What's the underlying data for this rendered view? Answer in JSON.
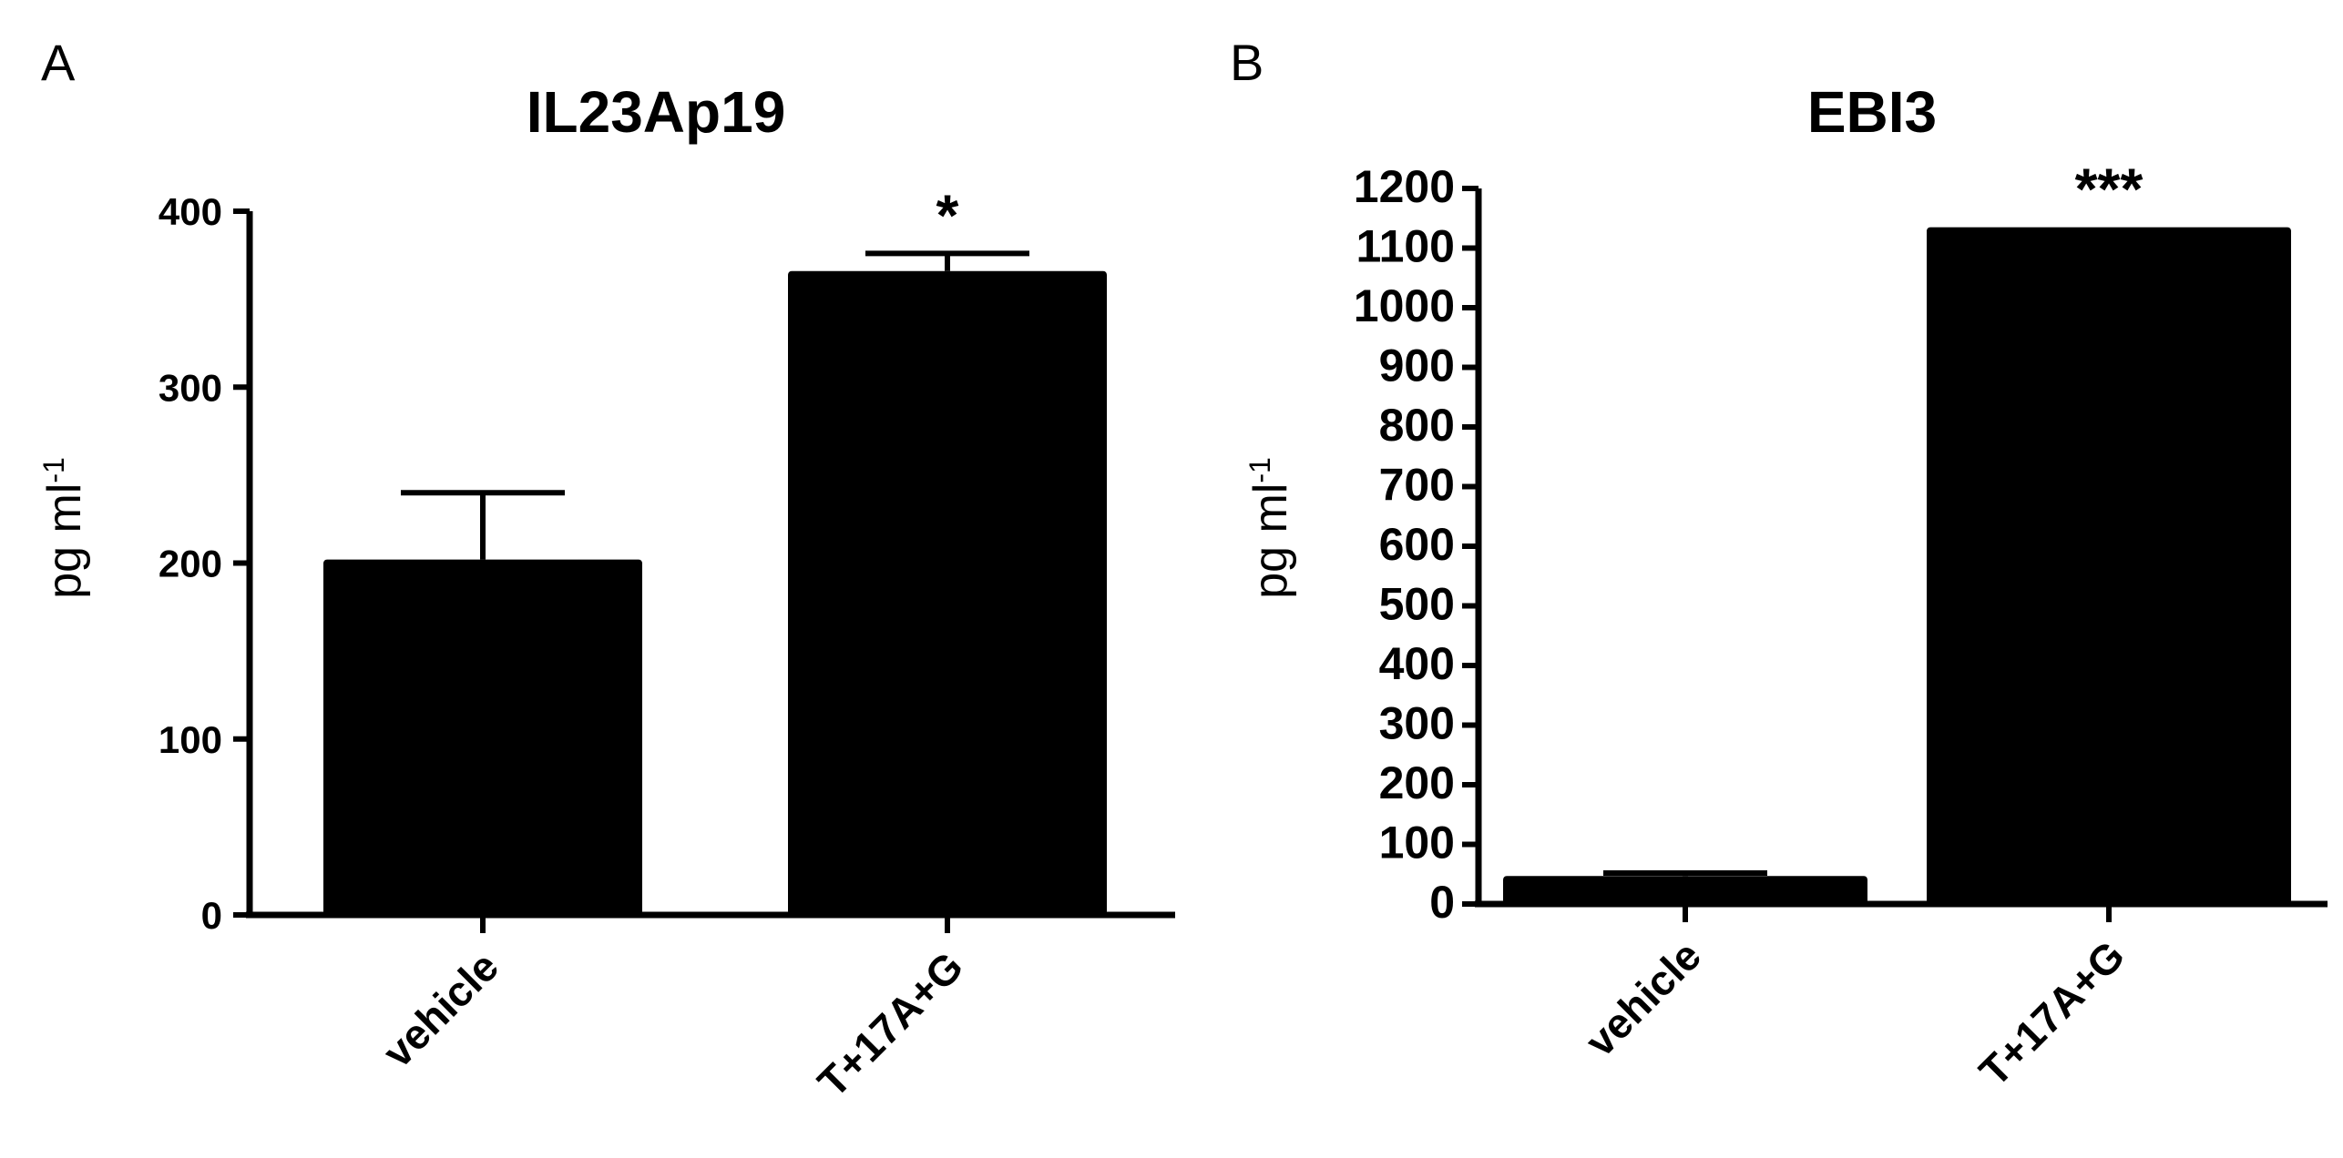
{
  "chart_data": [
    {
      "type": "bar",
      "panel": "A",
      "title": "IL23Ap19",
      "ylabel": "pg ml",
      "ylabel_sup": "-1",
      "xlabel": "",
      "categories": [
        "vehicle",
        "T+17A+G"
      ],
      "values": [
        202,
        366
      ],
      "error": [
        38,
        10
      ],
      "significance": [
        "",
        "*"
      ],
      "ylim": [
        0,
        400
      ],
      "yticks": [
        0,
        100,
        200,
        300,
        400
      ],
      "ytick_labels": [
        "0",
        "100",
        "200",
        "300",
        "400"
      ],
      "bar_color": "#000000",
      "grid": false
    },
    {
      "type": "bar",
      "panel": "B",
      "title": "EBI3",
      "ylabel": "pg ml",
      "ylabel_sup": "-1",
      "xlabel": "",
      "categories": [
        "vehicle",
        "T+17A+G"
      ],
      "values": [
        47,
        1135
      ],
      "error": [
        5,
        0
      ],
      "significance": [
        "",
        "***"
      ],
      "ylim": [
        0,
        1200
      ],
      "yticks": [
        0,
        100,
        200,
        300,
        400,
        500,
        600,
        700,
        800,
        900,
        1000,
        1100,
        1200
      ],
      "ytick_labels": [
        "0",
        "100",
        "200",
        "300",
        "400",
        "500",
        "600",
        "700",
        "800",
        "900",
        "1000",
        "1100",
        "1200"
      ],
      "bar_color": "#000000",
      "grid": false
    }
  ]
}
